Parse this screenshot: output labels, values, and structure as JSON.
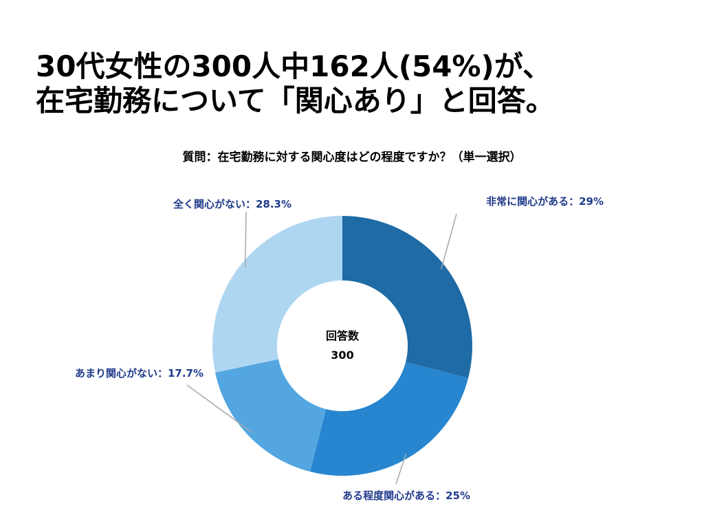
{
  "headline": {
    "line1": "30代女性の300人中162人(54%)が、",
    "line2": "在宅勤務について「関心あり」と回答。"
  },
  "question": "質問：在宅勤務に対する関心度はどの程度ですか？（単一選択）",
  "chart_data": {
    "type": "pie",
    "donut": true,
    "center_label": "回答数",
    "center_value": "300",
    "categories": [
      "非常に関心がある",
      "ある程度関心がある",
      "あまり関心がない",
      "全く関心がない"
    ],
    "values": [
      29,
      25,
      17.7,
      28.3
    ],
    "labels": [
      "非常に関心がある：29%",
      "ある程度関心がある：25%",
      "あまり関心がない：17.7%",
      "全く関心がない：28.3%"
    ],
    "colors": [
      "#1f6ba5",
      "#2786cf",
      "#53a6e0",
      "#aed6f1"
    ],
    "label_color": "#1f3a8a",
    "leader_color": "#a8a8a8"
  }
}
